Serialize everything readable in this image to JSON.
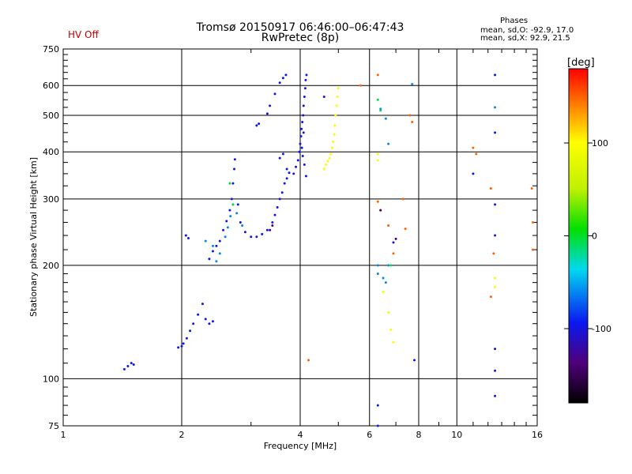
{
  "header": {
    "title": "Tromsø 20150917 06:46:00–06:47:43",
    "subtitle": "RwPretec (8p)",
    "status": "HV Off"
  },
  "phase_stats": {
    "heading": "Phases",
    "o_line": "mean, sd,O: -92.9, 17.0",
    "x_line": "mean, sd,X:  92.9, 21.5"
  },
  "colorbar": {
    "label": "[deg]",
    "range": [
      -180,
      180
    ],
    "ticks": [
      "100",
      "0",
      "-100"
    ],
    "tick_values": [
      100,
      0,
      -100
    ]
  },
  "colors": {
    "hv_status": "#c00000",
    "o_mode": "#1030e0",
    "x_mode": "#e8e000"
  },
  "chart_data": {
    "type": "scatter",
    "xscale": "log",
    "yscale": "log",
    "xlabel": "Frequency [MHz]",
    "ylabel": "Stationary phase Virtual Height [km]",
    "xlim": [
      1,
      16
    ],
    "ylim": [
      75,
      750
    ],
    "xticks": [
      1,
      2,
      4,
      6,
      8,
      10,
      16
    ],
    "xtick_labels": [
      "1",
      "2",
      "4",
      "6",
      "8",
      "10",
      "16"
    ],
    "yticks": [
      75,
      100,
      200,
      300,
      400,
      500,
      600,
      750
    ],
    "ytick_labels": [
      "75",
      "100",
      "200",
      "300",
      "400",
      "500",
      "600",
      "750"
    ],
    "grid": true,
    "series": [
      {
        "phase_deg": -95,
        "points": [
          [
            1.43,
            106
          ],
          [
            1.46,
            108
          ],
          [
            1.49,
            110
          ],
          [
            1.51,
            109
          ],
          [
            1.96,
            121
          ],
          [
            2.0,
            122
          ],
          [
            2.02,
            124
          ],
          [
            2.06,
            128
          ],
          [
            2.1,
            134
          ],
          [
            2.14,
            140
          ],
          [
            2.2,
            148
          ],
          [
            2.26,
            158
          ],
          [
            2.3,
            144
          ],
          [
            2.35,
            140
          ],
          [
            2.4,
            142
          ],
          [
            2.05,
            240
          ],
          [
            2.08,
            236
          ],
          [
            2.35,
            208
          ],
          [
            2.4,
            218
          ],
          [
            2.45,
            225
          ],
          [
            2.5,
            232
          ],
          [
            2.55,
            248
          ],
          [
            2.6,
            262
          ],
          [
            2.65,
            280
          ],
          [
            2.68,
            300
          ],
          [
            2.7,
            330
          ],
          [
            2.72,
            360
          ],
          [
            2.73,
            382
          ],
          [
            2.78,
            290
          ],
          [
            2.82,
            260
          ],
          [
            2.9,
            245
          ],
          [
            3.0,
            238
          ],
          [
            3.1,
            238
          ],
          [
            3.2,
            242
          ],
          [
            3.3,
            248
          ],
          [
            3.4,
            260
          ],
          [
            3.45,
            272
          ],
          [
            3.5,
            285
          ],
          [
            3.55,
            300
          ],
          [
            3.6,
            312
          ],
          [
            3.65,
            330
          ],
          [
            3.7,
            340
          ],
          [
            3.75,
            352
          ],
          [
            3.55,
            385
          ],
          [
            3.62,
            395
          ],
          [
            3.7,
            360
          ],
          [
            3.85,
            350
          ],
          [
            3.9,
            365
          ],
          [
            3.95,
            380
          ],
          [
            3.98,
            400
          ],
          [
            4.0,
            420
          ],
          [
            4.02,
            440
          ],
          [
            4.03,
            460
          ],
          [
            4.05,
            480
          ],
          [
            4.07,
            500
          ],
          [
            4.08,
            530
          ],
          [
            4.1,
            560
          ],
          [
            4.12,
            590
          ],
          [
            4.13,
            620
          ],
          [
            4.15,
            640
          ],
          [
            4.14,
            345
          ],
          [
            4.1,
            370
          ],
          [
            4.06,
            390
          ],
          [
            4.04,
            410
          ],
          [
            4.08,
            450
          ],
          [
            3.1,
            470
          ],
          [
            3.14,
            475
          ],
          [
            3.3,
            505
          ],
          [
            3.35,
            530
          ],
          [
            3.45,
            570
          ],
          [
            3.55,
            610
          ],
          [
            3.62,
            628
          ],
          [
            3.68,
            640
          ],
          [
            12.5,
            640
          ],
          [
            12.5,
            450
          ],
          [
            12.5,
            290
          ],
          [
            12.5,
            240
          ],
          [
            12.5,
            120
          ],
          [
            12.5,
            105
          ],
          [
            12.5,
            90
          ],
          [
            6.3,
            85
          ],
          [
            6.3,
            75
          ],
          [
            7.8,
            112
          ],
          [
            11,
            350
          ],
          [
            6.9,
            230
          ],
          [
            4.6,
            560
          ]
        ]
      },
      {
        "phase_deg": -60,
        "points": [
          [
            2.4,
            225
          ],
          [
            2.5,
            215
          ],
          [
            2.58,
            238
          ],
          [
            2.62,
            252
          ],
          [
            2.66,
            270
          ],
          [
            2.7,
            290
          ],
          [
            2.76,
            275
          ],
          [
            2.85,
            255
          ],
          [
            2.3,
            232
          ],
          [
            2.45,
            205
          ],
          [
            6.3,
            200
          ],
          [
            6.3,
            190
          ],
          [
            6.5,
            185
          ],
          [
            6.6,
            180
          ],
          [
            6.7,
            200
          ],
          [
            12.5,
            525
          ],
          [
            6.7,
            420
          ],
          [
            7.7,
            605
          ],
          [
            6.4,
            520
          ],
          [
            6.6,
            490
          ]
        ]
      },
      {
        "phase_deg": -5,
        "points": [
          [
            2.7,
            290
          ],
          [
            2.65,
            330
          ],
          [
            6.3,
            550
          ],
          [
            6.4,
            515
          ],
          [
            6.8,
            200
          ]
        ]
      },
      {
        "phase_deg": 95,
        "points": [
          [
            4.6,
            360
          ],
          [
            4.65,
            370
          ],
          [
            4.7,
            378
          ],
          [
            4.75,
            385
          ],
          [
            4.78,
            395
          ],
          [
            4.82,
            410
          ],
          [
            4.85,
            425
          ],
          [
            4.88,
            445
          ],
          [
            4.9,
            470
          ],
          [
            4.92,
            500
          ],
          [
            4.95,
            530
          ],
          [
            4.97,
            560
          ],
          [
            5.0,
            590
          ],
          [
            6.3,
            395
          ],
          [
            6.3,
            380
          ],
          [
            6.7,
            150
          ],
          [
            6.8,
            135
          ],
          [
            6.9,
            125
          ],
          [
            6.5,
            170
          ],
          [
            12.5,
            185
          ],
          [
            12.5,
            175
          ]
        ]
      },
      {
        "phase_deg": 150,
        "points": [
          [
            6.3,
            640
          ],
          [
            6.3,
            295
          ],
          [
            6.4,
            280
          ],
          [
            6.7,
            255
          ],
          [
            7.3,
            300
          ],
          [
            7.4,
            250
          ],
          [
            6.9,
            215
          ],
          [
            7.6,
            500
          ],
          [
            7.7,
            480
          ],
          [
            11,
            410
          ],
          [
            11.2,
            395
          ],
          [
            12.2,
            320
          ],
          [
            12.4,
            215
          ],
          [
            12.2,
            165
          ],
          [
            15.5,
            320
          ],
          [
            15.6,
            260
          ],
          [
            15.6,
            220
          ],
          [
            4.2,
            112
          ],
          [
            5.7,
            600
          ]
        ]
      },
      {
        "phase_deg": -140,
        "points": [
          [
            3.35,
            248
          ],
          [
            3.4,
            255
          ],
          [
            7.0,
            235
          ],
          [
            6.4,
            280
          ]
        ]
      }
    ]
  }
}
